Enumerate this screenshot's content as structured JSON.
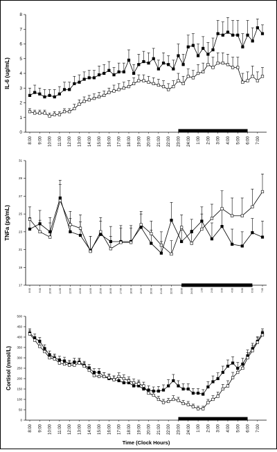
{
  "chart_data": [
    {
      "type": "line",
      "ylabel": "IL-6 (ug/mL)",
      "ylim": [
        0,
        8
      ],
      "yticks": [
        "0",
        "1",
        "2",
        "3",
        "4",
        "5",
        "6",
        "7",
        "8"
      ],
      "x": [
        "8:00",
        "8:30",
        "9:00",
        "9:30",
        "10:00",
        "10:30",
        "11:00",
        "11:30",
        "12:00",
        "12:30",
        "13:00",
        "13:30",
        "14:00",
        "14:30",
        "15:00",
        "15:30",
        "16:00",
        "16:30",
        "17:00",
        "17:30",
        "18:00",
        "18:30",
        "19:00",
        "19:30",
        "20:00",
        "20:30",
        "21:00",
        "21:30",
        "22:00",
        "22:30",
        "23:00",
        "23:30",
        "24:00",
        "0:30",
        "1:00",
        "1:30",
        "2:00",
        "2:30",
        "3:00",
        "3:30",
        "4:00",
        "4:30",
        "5:00",
        "5:30",
        "6:00",
        "6:30",
        "7:00",
        "7:30"
      ],
      "xtick_labels": [
        "8:00",
        "9:00",
        "10:00",
        "11:00",
        "12:00",
        "13:00",
        "14:00",
        "15:00",
        "16:00",
        "17:00",
        "18:00",
        "19:00",
        "20:00",
        "21:00",
        "22:00",
        "23:00",
        "24:00",
        "1:00",
        "2:00",
        "3:00",
        "4:00",
        "5:00",
        "6:00",
        "7:00"
      ],
      "series": [
        {
          "marker": "filled-square",
          "values": [
            2.5,
            2.7,
            2.6,
            2.4,
            2.5,
            2.4,
            2.6,
            2.9,
            2.9,
            3.3,
            3.4,
            3.6,
            3.7,
            3.7,
            3.9,
            4.0,
            4.2,
            3.9,
            4.1,
            4.1,
            4.9,
            4.0,
            4.6,
            4.8,
            4.7,
            5.0,
            4.3,
            4.7,
            4.6,
            4.3,
            5.2,
            4.6,
            5.8,
            5.9,
            5.2,
            5.7,
            5.3,
            5.6,
            6.7,
            6.6,
            6.8,
            6.6,
            6.6,
            5.8,
            6.6,
            6.2,
            7.1,
            6.7
          ],
          "errors": [
            0.5,
            0.5,
            0.4,
            0.5,
            0.4,
            0.5,
            0.5,
            0.5,
            0.5,
            0.5,
            0.5,
            0.5,
            0.5,
            0.5,
            0.6,
            0.6,
            0.6,
            0.5,
            0.6,
            0.6,
            0.7,
            0.6,
            0.7,
            0.7,
            0.7,
            0.7,
            0.6,
            0.7,
            0.6,
            0.6,
            0.8,
            0.7,
            0.8,
            0.8,
            0.8,
            0.8,
            0.8,
            0.8,
            0.9,
            0.9,
            1.0,
            1.0,
            1.0,
            0.9,
            1.0,
            0.9,
            0.6,
            0.6
          ]
        },
        {
          "marker": "open-square",
          "values": [
            1.4,
            1.3,
            1.3,
            1.3,
            1.1,
            1.2,
            1.2,
            1.4,
            1.4,
            1.6,
            1.9,
            2.1,
            2.2,
            2.3,
            2.4,
            2.5,
            2.7,
            2.8,
            2.9,
            3.0,
            3.1,
            3.3,
            3.5,
            3.5,
            3.4,
            3.3,
            3.2,
            3.1,
            2.9,
            3.1,
            3.5,
            3.3,
            3.8,
            3.7,
            4.0,
            4.1,
            4.6,
            4.4,
            4.7,
            4.7,
            4.6,
            4.4,
            4.4,
            3.4,
            3.5,
            3.8,
            3.5,
            3.8
          ],
          "errors": [
            0.2,
            0.2,
            0.2,
            0.2,
            0.2,
            0.2,
            0.2,
            0.2,
            0.2,
            0.3,
            0.3,
            0.3,
            0.3,
            0.3,
            0.3,
            0.3,
            0.3,
            0.4,
            0.4,
            0.4,
            0.4,
            0.4,
            0.4,
            0.4,
            0.4,
            0.4,
            0.4,
            0.4,
            0.4,
            0.4,
            0.5,
            0.5,
            0.5,
            0.5,
            0.6,
            0.6,
            0.7,
            0.7,
            0.7,
            0.7,
            0.7,
            0.7,
            0.7,
            0.6,
            0.6,
            0.7,
            0.6,
            0.6
          ]
        }
      ],
      "night_bar": {
        "start": "23:00",
        "end": "6:00"
      }
    },
    {
      "type": "line",
      "ylabel": "TNFa (pg/mL)",
      "ylim": [
        17,
        31
      ],
      "yticks": [
        "17",
        "19",
        "21",
        "23",
        "25",
        "27",
        "29",
        "31"
      ],
      "x": [
        "8:00",
        "9:00",
        "10:00",
        "11:00",
        "12:00",
        "13:00",
        "14:00",
        "15:00",
        "16:00",
        "17:00",
        "18:00",
        "19:00",
        "20:00",
        "21:00",
        "22:00",
        "23:00",
        "24:00",
        "1:00",
        "2:00",
        "3:00",
        "4:00",
        "5:00",
        "6:00",
        "7:00"
      ],
      "xtick_labels": [
        "8:00",
        "9:00",
        "10:00",
        "11:00",
        "12:00",
        "13:00",
        "14:00",
        "15:00",
        "16:00",
        "17:00",
        "18:00",
        "19:00",
        "20:00",
        "21:00",
        "22:00",
        "23:00",
        "24:00",
        "1:00",
        "2:00",
        "3:00",
        "4:00",
        "5:00",
        "6:00",
        "7:00"
      ],
      "series": [
        {
          "marker": "filled-square",
          "values": [
            23.3,
            23.9,
            23.0,
            26.8,
            23.0,
            22.6,
            20.9,
            22.7,
            21.9,
            21.9,
            21.9,
            23.5,
            21.7,
            20.6,
            24.3,
            21.9,
            23.0,
            24.2,
            22.2,
            23.6,
            21.6,
            21.4,
            22.9,
            22.4
          ],
          "errors": [
            1.3,
            1.5,
            1.6,
            2.0,
            1.5,
            1.5,
            1.6,
            1.5,
            1.7,
            1.8,
            1.8,
            1.5,
            1.5,
            1.3,
            2.0,
            1.3,
            1.4,
            1.6,
            1.8,
            2.0,
            1.7,
            1.6,
            1.6,
            1.8
          ]
        },
        {
          "marker": "open-square",
          "values": [
            24.4,
            23.0,
            22.4,
            26.5,
            23.8,
            23.4,
            20.8,
            23.0,
            21.1,
            21.8,
            21.8,
            23.8,
            22.8,
            21.5,
            20.5,
            23.5,
            21.7,
            23.3,
            24.5,
            25.6,
            24.8,
            24.8,
            25.8,
            27.5
          ],
          "errors": [
            1.4,
            1.3,
            1.6,
            1.8,
            1.5,
            1.5,
            1.7,
            1.6,
            1.4,
            1.6,
            1.6,
            1.5,
            1.4,
            1.5,
            1.5,
            1.4,
            1.5,
            1.7,
            1.6,
            2.0,
            2.0,
            2.0,
            2.0,
            2.0
          ]
        }
      ],
      "night_bar": {
        "start": "23:00",
        "end": "6:00"
      }
    },
    {
      "type": "line",
      "ylabel": "Cortisol (nmol/L)",
      "xlabel": "Time (Clock Hours)",
      "ylim": [
        0,
        500
      ],
      "yticks": [
        "0",
        "50",
        "100",
        "150",
        "200",
        "250",
        "300",
        "350",
        "400",
        "450",
        "500"
      ],
      "x": [
        "8:00",
        "8:30",
        "9:00",
        "9:30",
        "10:00",
        "10:30",
        "11:00",
        "11:30",
        "12:00",
        "12:30",
        "13:00",
        "13:30",
        "14:00",
        "14:30",
        "15:00",
        "15:30",
        "16:00",
        "16:30",
        "17:00",
        "17:30",
        "18:00",
        "18:30",
        "19:00",
        "19:30",
        "20:00",
        "20:30",
        "21:00",
        "21:30",
        "22:00",
        "22:30",
        "23:00",
        "23:30",
        "24:00",
        "0:30",
        "1:00",
        "1:30",
        "2:00",
        "2:30",
        "3:00",
        "3:30",
        "4:00",
        "4:30",
        "5:00",
        "5:30",
        "6:00",
        "6:30",
        "7:00",
        "7:30"
      ],
      "xtick_labels": [
        "8:00",
        "9:00",
        "10:00",
        "11:00",
        "12:00",
        "13:00",
        "14:00",
        "15:00",
        "16:00",
        "17:00",
        "18:00",
        "19:00",
        "20:00",
        "21:00",
        "22:00",
        "23:00",
        "24:00",
        "1:00",
        "2:00",
        "3:00",
        "4:00",
        "5:00",
        "6:00",
        "7:00"
      ],
      "series": [
        {
          "marker": "filled-square",
          "values": [
            420,
            395,
            380,
            345,
            315,
            300,
            290,
            285,
            270,
            280,
            280,
            265,
            250,
            230,
            230,
            210,
            200,
            195,
            190,
            180,
            180,
            165,
            165,
            150,
            145,
            140,
            140,
            145,
            165,
            190,
            165,
            150,
            150,
            130,
            130,
            125,
            160,
            185,
            200,
            230,
            260,
            275,
            250,
            270,
            310,
            345,
            380,
            420
          ],
          "errors": [
            20,
            20,
            18,
            18,
            18,
            18,
            18,
            18,
            18,
            18,
            18,
            18,
            18,
            18,
            18,
            18,
            18,
            18,
            18,
            18,
            18,
            20,
            20,
            20,
            20,
            20,
            22,
            25,
            30,
            30,
            25,
            25,
            25,
            22,
            22,
            22,
            25,
            28,
            28,
            30,
            30,
            30,
            28,
            28,
            28,
            25,
            22,
            20
          ]
        },
        {
          "marker": "open-square",
          "values": [
            415,
            385,
            355,
            330,
            300,
            295,
            275,
            270,
            265,
            265,
            275,
            260,
            240,
            215,
            210,
            210,
            205,
            195,
            210,
            200,
            190,
            180,
            175,
            165,
            130,
            120,
            100,
            85,
            90,
            100,
            95,
            80,
            75,
            65,
            55,
            55,
            85,
            100,
            115,
            150,
            165,
            205,
            230,
            250,
            300,
            335,
            375,
            410
          ],
          "errors": [
            18,
            18,
            18,
            18,
            18,
            18,
            18,
            18,
            18,
            18,
            18,
            18,
            18,
            18,
            18,
            18,
            18,
            18,
            18,
            18,
            18,
            18,
            18,
            18,
            18,
            18,
            15,
            15,
            15,
            18,
            15,
            15,
            15,
            12,
            12,
            12,
            15,
            18,
            20,
            22,
            25,
            25,
            25,
            25,
            25,
            25,
            22,
            20
          ]
        }
      ],
      "night_bar": {
        "start": "23:00",
        "end": "6:00"
      }
    }
  ]
}
